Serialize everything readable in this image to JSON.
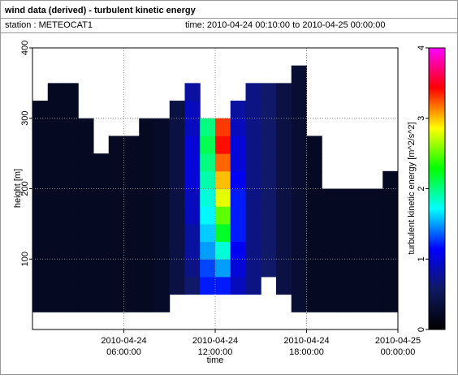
{
  "chart_data": {
    "type": "heatmap",
    "title": "wind data (derived) - turbulent kinetic energy",
    "station": "station : METEOCAT1",
    "time_range": "time: 2010-04-24 00:10:00 to 2010-04-25 00:00:00",
    "xlabel": "time",
    "ylabel": "height [m]",
    "zlabel": "turbulent kinetic energy [m^2/s^2]",
    "x_bins": [
      "2010-04-24 00:00:00",
      "2010-04-24 01:00:00",
      "2010-04-24 02:00:00",
      "2010-04-24 03:00:00",
      "2010-04-24 04:00:00",
      "2010-04-24 05:00:00",
      "2010-04-24 06:00:00",
      "2010-04-24 07:00:00",
      "2010-04-24 08:00:00",
      "2010-04-24 09:00:00",
      "2010-04-24 10:00:00",
      "2010-04-24 11:00:00",
      "2010-04-24 12:00:00",
      "2010-04-24 13:00:00",
      "2010-04-24 14:00:00",
      "2010-04-24 15:00:00",
      "2010-04-24 16:00:00",
      "2010-04-24 17:00:00",
      "2010-04-24 18:00:00",
      "2010-04-24 19:00:00",
      "2010-04-24 20:00:00",
      "2010-04-24 21:00:00",
      "2010-04-24 22:00:00",
      "2010-04-24 23:00:00",
      "2010-04-25 00:00:00"
    ],
    "y_bins": [
      25,
      50,
      75,
      100,
      125,
      150,
      175,
      200,
      225,
      250,
      275,
      300,
      325,
      350,
      375
    ],
    "values": [
      [
        0.2,
        0.2,
        0.2,
        0.2,
        0.2,
        0.2,
        0.2,
        0.2,
        0.2,
        0.2,
        0.2,
        0.2,
        null,
        null
      ],
      [
        0.2,
        0.2,
        0.2,
        0.2,
        0.2,
        0.2,
        0.2,
        0.2,
        0.2,
        0.2,
        0.2,
        0.2,
        0.2,
        null
      ],
      [
        0.2,
        0.2,
        0.2,
        0.2,
        0.2,
        0.2,
        0.2,
        0.2,
        0.2,
        0.2,
        0.2,
        0.2,
        0.2,
        null
      ],
      [
        0.2,
        0.2,
        0.2,
        0.2,
        0.2,
        0.2,
        0.2,
        0.2,
        0.2,
        0.2,
        0.2,
        null,
        null,
        null
      ],
      [
        0.2,
        0.2,
        0.2,
        0.2,
        0.2,
        0.2,
        0.2,
        0.2,
        0.2,
        null,
        null,
        null,
        null,
        null
      ],
      [
        0.2,
        0.2,
        0.2,
        0.2,
        0.2,
        0.2,
        0.2,
        0.2,
        0.2,
        0.2,
        null,
        null,
        null,
        null
      ],
      [
        0.2,
        0.2,
        0.2,
        0.2,
        0.2,
        0.2,
        0.2,
        0.2,
        0.2,
        0.2,
        null,
        null,
        null,
        null
      ],
      [
        0.2,
        0.2,
        0.2,
        0.2,
        0.2,
        0.2,
        0.2,
        0.2,
        0.2,
        0.2,
        0.2,
        null,
        null,
        null
      ],
      [
        0.25,
        0.25,
        0.25,
        0.25,
        0.25,
        0.25,
        0.25,
        0.25,
        0.25,
        0.25,
        0.25,
        null,
        null,
        null
      ],
      [
        null,
        0.4,
        0.4,
        0.4,
        0.4,
        0.4,
        0.4,
        0.4,
        0.4,
        0.4,
        0.4,
        0.4,
        null,
        null
      ],
      [
        null,
        0.6,
        0.7,
        0.8,
        0.8,
        0.9,
        0.9,
        1.0,
        1.0,
        1.0,
        0.9,
        0.9,
        0.8,
        null
      ],
      [
        null,
        1.2,
        1.3,
        1.5,
        1.6,
        1.7,
        1.8,
        1.9,
        2.0,
        2.1,
        2.0,
        null,
        null,
        null
      ],
      [
        null,
        1.2,
        1.5,
        1.8,
        2.2,
        2.5,
        2.8,
        3.0,
        3.2,
        3.4,
        3.3,
        null,
        null,
        null
      ],
      [
        null,
        0.9,
        1.0,
        1.1,
        1.2,
        1.2,
        1.2,
        1.1,
        1.0,
        1.0,
        0.9,
        0.8,
        null,
        null
      ],
      [
        null,
        0.7,
        0.7,
        0.7,
        0.7,
        0.7,
        0.7,
        0.7,
        0.7,
        0.7,
        0.7,
        0.7,
        0.7,
        null
      ],
      [
        null,
        null,
        0.6,
        0.6,
        0.6,
        0.6,
        0.6,
        0.6,
        0.6,
        0.6,
        0.6,
        0.6,
        0.6,
        null
      ],
      [
        null,
        0.4,
        0.4,
        0.4,
        0.4,
        0.4,
        0.4,
        0.4,
        0.4,
        0.4,
        0.4,
        0.4,
        0.4,
        null
      ],
      [
        0.3,
        0.3,
        0.3,
        0.3,
        0.3,
        0.3,
        0.3,
        0.3,
        0.3,
        0.3,
        0.3,
        0.3,
        0.3,
        0.3
      ],
      [
        0.2,
        0.2,
        0.2,
        0.2,
        0.2,
        0.2,
        0.2,
        0.2,
        0.2,
        0.2,
        null,
        null,
        null,
        null
      ],
      [
        0.2,
        0.2,
        0.2,
        0.2,
        0.2,
        0.2,
        0.2,
        null,
        null,
        null,
        null,
        null,
        null,
        null
      ],
      [
        0.2,
        0.2,
        0.2,
        0.2,
        0.2,
        0.2,
        0.2,
        null,
        null,
        null,
        null,
        null,
        null,
        null
      ],
      [
        0.2,
        0.2,
        0.2,
        0.2,
        0.2,
        0.2,
        0.2,
        null,
        null,
        null,
        null,
        null,
        null,
        null
      ],
      [
        0.2,
        0.2,
        0.2,
        0.2,
        0.2,
        0.2,
        0.2,
        null,
        null,
        null,
        null,
        null,
        null,
        null
      ],
      [
        0.2,
        0.2,
        0.2,
        0.2,
        0.2,
        0.2,
        0.2,
        0.2,
        null,
        null,
        null,
        null,
        null,
        null
      ]
    ],
    "colormap": [
      "#000000",
      "#101a60",
      "#0000ff",
      "#00ffff",
      "#00ff00",
      "#ffff00",
      "#ff0000",
      "#ff00ff"
    ],
    "xlim": [
      "2010-04-24 00:00:00",
      "2010-04-25 00:00:00"
    ],
    "xticks": [
      "2010-04-24 06:00:00",
      "2010-04-24 12:00:00",
      "2010-04-24 18:00:00",
      "2010-04-25 00:00:00"
    ],
    "ylim": [
      0,
      400
    ],
    "yticks": [
      100,
      200,
      300,
      400
    ],
    "zlim": [
      0,
      4
    ],
    "zticks": [
      0,
      1,
      2,
      3,
      4
    ],
    "grid": true
  }
}
